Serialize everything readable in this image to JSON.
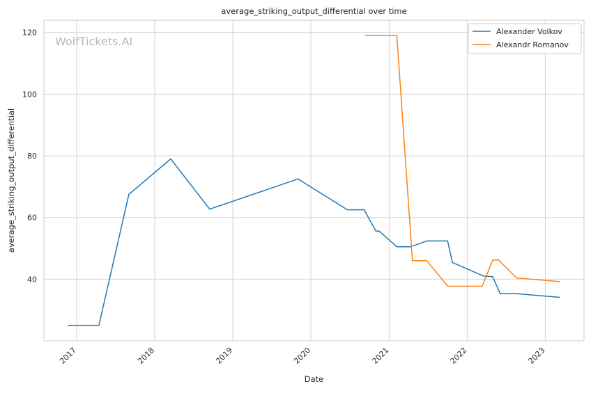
{
  "chart_data": {
    "type": "line",
    "title": "average_striking_output_differential over time",
    "xlabel": "Date",
    "ylabel": "average_striking_output_differential",
    "watermark": "WolfTickets.AI",
    "x_ticks": [
      "2017",
      "2018",
      "2019",
      "2020",
      "2021",
      "2022",
      "2023"
    ],
    "y_ticks": [
      40,
      60,
      80,
      100,
      120
    ],
    "xlim": [
      "2016-08-01",
      "2023-07-01"
    ],
    "ylim": [
      20,
      124
    ],
    "grid": true,
    "legend_position": "top-right",
    "series": [
      {
        "name": "Alexander Volkov",
        "color": "#1f77b4",
        "points": [
          [
            "2016-11-19",
            25
          ],
          [
            "2017-04-15",
            25
          ],
          [
            "2017-09-02",
            67.5
          ],
          [
            "2018-03-17",
            79
          ],
          [
            "2018-09-15",
            62.7
          ],
          [
            "2019-11-02",
            72.5
          ],
          [
            "2020-06-20",
            62.5
          ],
          [
            "2020-09-06",
            62.5
          ],
          [
            "2020-10-31",
            55.6
          ],
          [
            "2020-11-15",
            55.6
          ],
          [
            "2021-02-06",
            50.5
          ],
          [
            "2021-04-10",
            50.5
          ],
          [
            "2021-06-26",
            52.4
          ],
          [
            "2021-10-01",
            52.4
          ],
          [
            "2021-10-24",
            45.4
          ],
          [
            "2022-03-19",
            41
          ],
          [
            "2022-04-30",
            40.8
          ],
          [
            "2022-06-04",
            35.3
          ],
          [
            "2022-08-20",
            35.3
          ],
          [
            "2023-03-11",
            34.1
          ]
        ]
      },
      {
        "name": "Alexandr Romanov",
        "color": "#ff7f0e",
        "points": [
          [
            "2020-09-10",
            119
          ],
          [
            "2021-02-06",
            119
          ],
          [
            "2021-04-20",
            46
          ],
          [
            "2021-06-26",
            46
          ],
          [
            "2021-10-02",
            37.7
          ],
          [
            "2022-03-12",
            37.7
          ],
          [
            "2022-04-30",
            46.2
          ],
          [
            "2022-05-28",
            46.2
          ],
          [
            "2022-08-20",
            40.4
          ],
          [
            "2023-03-11",
            39.2
          ]
        ]
      }
    ]
  }
}
